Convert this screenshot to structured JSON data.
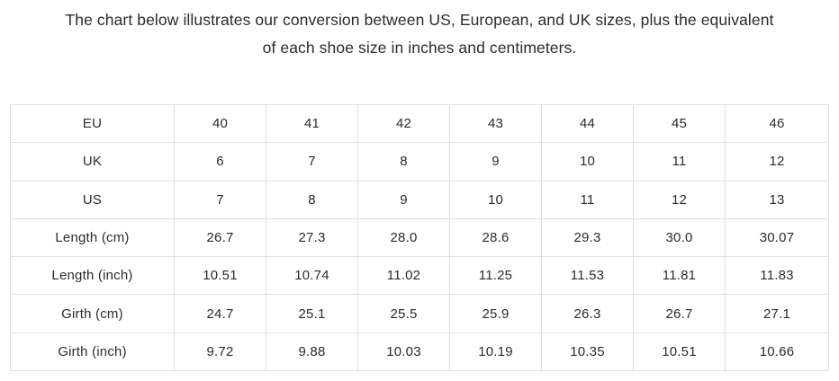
{
  "heading": {
    "line1": "The chart below illustrates our conversion between US, European, and UK sizes, plus the equivalent",
    "line2": "of each shoe size in inches and centimeters.",
    "full_text": "The chart below illustrates our conversion between US, European, and UK sizes, plus the equivalent of each shoe size in inches and centimeters."
  },
  "table": {
    "rows": [
      {
        "label": "EU",
        "values": [
          "40",
          "41",
          "42",
          "43",
          "44",
          "45",
          "46"
        ]
      },
      {
        "label": "UK",
        "values": [
          "6",
          "7",
          "8",
          "9",
          "10",
          "11",
          "12"
        ]
      },
      {
        "label": "US",
        "values": [
          "7",
          "8",
          "9",
          "10",
          "11",
          "12",
          "13"
        ]
      },
      {
        "label": "Length (cm)",
        "values": [
          "26.7",
          "27.3",
          "28.0",
          "28.6",
          "29.3",
          "30.0",
          "30.07"
        ]
      },
      {
        "label": "Length (inch)",
        "values": [
          "10.51",
          "10.74",
          "11.02",
          "11.25",
          "11.53",
          "11.81",
          "11.83"
        ]
      },
      {
        "label": "Girth (cm)",
        "values": [
          "24.7",
          "25.1",
          "25.5",
          "25.9",
          "26.3",
          "26.7",
          "27.1"
        ]
      },
      {
        "label": "Girth (inch)",
        "values": [
          "9.72",
          "9.88",
          "10.03",
          "10.19",
          "10.35",
          "10.51",
          "10.66"
        ]
      }
    ]
  },
  "chart_data": {
    "type": "table",
    "title": "Shoe size conversion chart",
    "row_headers": [
      "EU",
      "UK",
      "US",
      "Length (cm)",
      "Length (inch)",
      "Girth (cm)",
      "Girth (inch)"
    ],
    "series": [
      {
        "name": "EU",
        "values": [
          40,
          41,
          42,
          43,
          44,
          45,
          46
        ]
      },
      {
        "name": "UK",
        "values": [
          6,
          7,
          8,
          9,
          10,
          11,
          12
        ]
      },
      {
        "name": "US",
        "values": [
          7,
          8,
          9,
          10,
          11,
          12,
          13
        ]
      },
      {
        "name": "Length (cm)",
        "values": [
          26.7,
          27.3,
          28.0,
          28.6,
          29.3,
          30.0,
          30.07
        ]
      },
      {
        "name": "Length (inch)",
        "values": [
          10.51,
          10.74,
          11.02,
          11.25,
          11.53,
          11.81,
          11.83
        ]
      },
      {
        "name": "Girth (cm)",
        "values": [
          24.7,
          25.1,
          25.5,
          25.9,
          26.3,
          26.7,
          27.1
        ]
      },
      {
        "name": "Girth (inch)",
        "values": [
          9.72,
          9.88,
          10.03,
          10.19,
          10.35,
          10.51,
          10.66
        ]
      }
    ]
  },
  "colors": {
    "text": "#2b2b2b",
    "border": "#e0e0e0",
    "background": "#ffffff"
  }
}
